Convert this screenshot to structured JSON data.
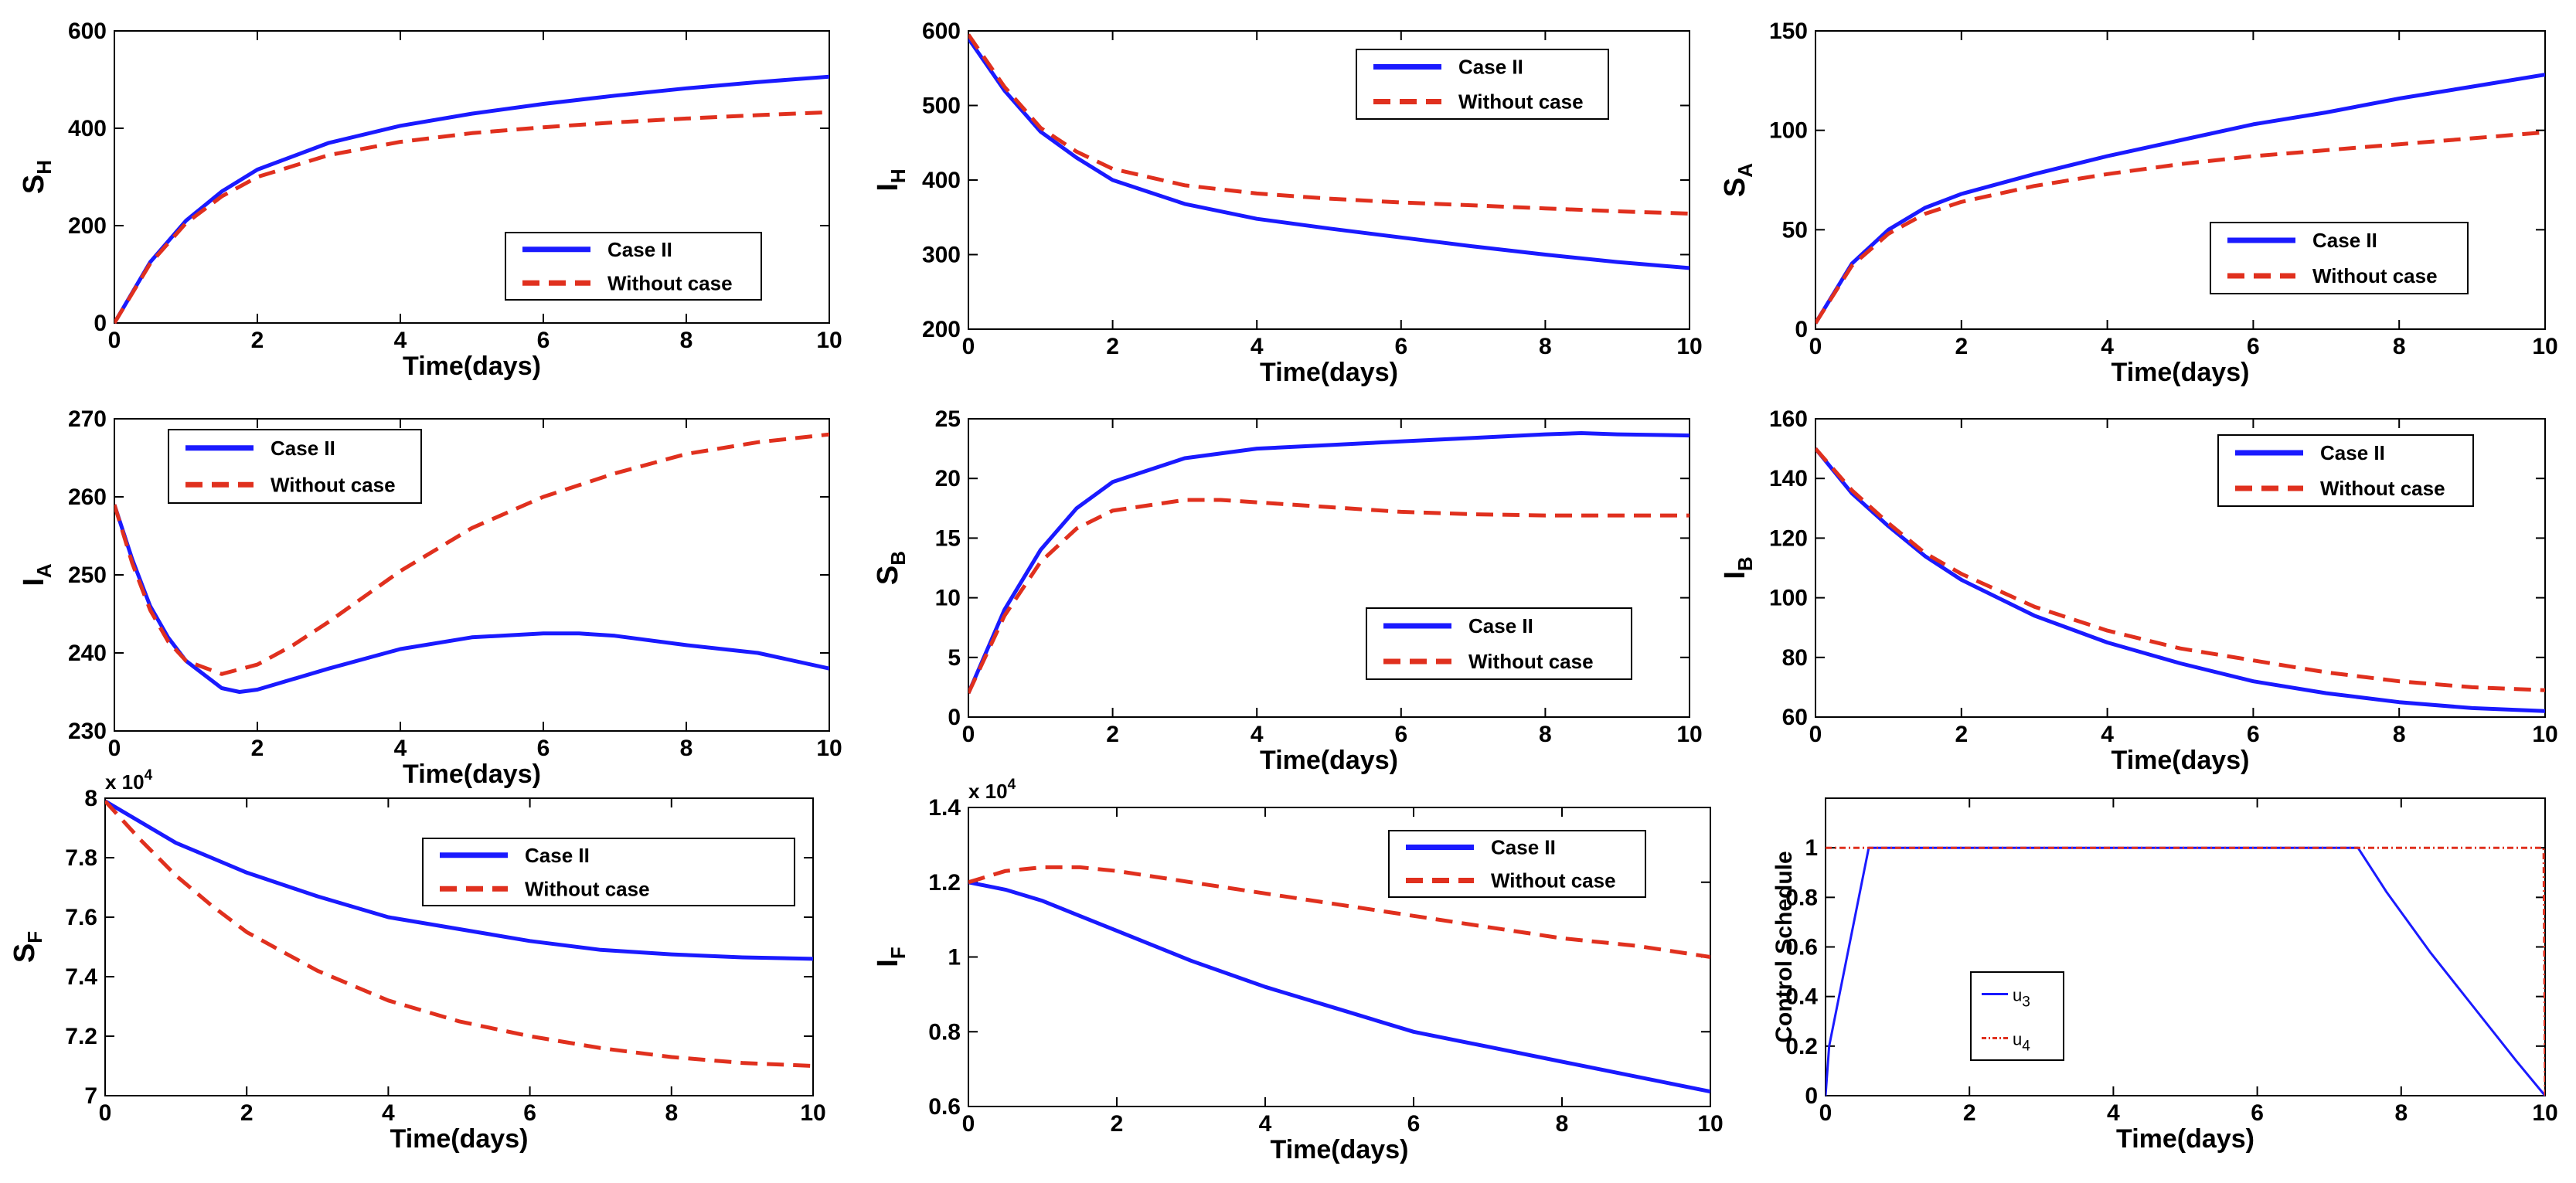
{
  "chart_data": [
    {
      "type": "line",
      "ylabel": "S",
      "ylabel_sub": "H",
      "xlabel": "Time(days)",
      "xlim": [
        0,
        10
      ],
      "ylim": [
        0,
        600
      ],
      "xticks": [
        0,
        2,
        4,
        6,
        8,
        10
      ],
      "yticks": [
        0,
        200,
        400,
        600
      ],
      "legend": "bottom-right",
      "series": [
        {
          "name": "Case II",
          "color": "#1a1aff",
          "style": "solid",
          "x": [
            0,
            0.5,
            1,
            1.5,
            2,
            3,
            4,
            5,
            6,
            7,
            8,
            9,
            10
          ],
          "y": [
            0,
            125,
            210,
            270,
            315,
            370,
            405,
            430,
            450,
            467,
            482,
            495,
            506
          ]
        },
        {
          "name": "Without case",
          "color": "#e0301e",
          "style": "dashed",
          "x": [
            0,
            0.5,
            1,
            1.5,
            2,
            3,
            4,
            5,
            6,
            7,
            8,
            9,
            10
          ],
          "y": [
            0,
            122,
            205,
            260,
            300,
            345,
            372,
            390,
            402,
            412,
            420,
            427,
            433
          ]
        }
      ]
    },
    {
      "type": "line",
      "ylabel": "I",
      "ylabel_sub": "H",
      "xlabel": "Time(days)",
      "xlim": [
        0,
        10
      ],
      "ylim": [
        200,
        600
      ],
      "xticks": [
        0,
        2,
        4,
        6,
        8,
        10
      ],
      "yticks": [
        200,
        300,
        400,
        500,
        600
      ],
      "legend": "top-right",
      "series": [
        {
          "name": "Case II",
          "color": "#1a1aff",
          "style": "solid",
          "x": [
            0,
            0.5,
            1,
            1.5,
            2,
            3,
            4,
            5,
            6,
            7,
            8,
            9,
            10
          ],
          "y": [
            590,
            520,
            465,
            430,
            400,
            368,
            348,
            335,
            323,
            311,
            300,
            290,
            282
          ]
        },
        {
          "name": "Without case",
          "color": "#e0301e",
          "style": "dashed",
          "x": [
            0,
            0.5,
            1,
            1.5,
            2,
            3,
            4,
            5,
            6,
            7,
            8,
            9,
            10
          ],
          "y": [
            595,
            525,
            470,
            438,
            415,
            393,
            382,
            375,
            370,
            366,
            362,
            358,
            355
          ]
        }
      ]
    },
    {
      "type": "line",
      "ylabel": "S",
      "ylabel_sub": "A",
      "xlabel": "Time(days)",
      "xlim": [
        0,
        10
      ],
      "ylim": [
        0,
        150
      ],
      "xticks": [
        0,
        2,
        4,
        6,
        8,
        10
      ],
      "yticks": [
        0,
        50,
        100,
        150
      ],
      "legend": "bottom-right",
      "series": [
        {
          "name": "Case II",
          "color": "#1a1aff",
          "style": "solid",
          "x": [
            0,
            0.5,
            1,
            1.5,
            2,
            3,
            4,
            5,
            6,
            7,
            8,
            9,
            10
          ],
          "y": [
            3,
            33,
            50,
            61,
            68,
            78,
            87,
            95,
            103,
            109,
            116,
            122,
            128
          ]
        },
        {
          "name": "Without case",
          "color": "#e0301e",
          "style": "dashed",
          "x": [
            0,
            0.5,
            1,
            1.5,
            2,
            3,
            4,
            5,
            6,
            7,
            8,
            9,
            10
          ],
          "y": [
            3,
            32,
            48,
            58,
            64,
            72,
            78,
            83,
            87,
            90,
            93,
            96,
            99
          ]
        }
      ]
    },
    {
      "type": "line",
      "ylabel": "I",
      "ylabel_sub": "A",
      "xlabel": "Time(days)",
      "xlim": [
        0,
        10
      ],
      "ylim": [
        230,
        270
      ],
      "xticks": [
        0,
        2,
        4,
        6,
        8,
        10
      ],
      "yticks": [
        230,
        240,
        250,
        260,
        270
      ],
      "legend": "top-left",
      "series": [
        {
          "name": "Case II",
          "color": "#1a1aff",
          "style": "solid",
          "x": [
            0,
            0.25,
            0.5,
            0.75,
            1,
            1.5,
            1.75,
            2,
            3,
            4,
            5,
            6,
            6.5,
            7,
            8,
            9,
            10
          ],
          "y": [
            259,
            252,
            246,
            242,
            239,
            235.5,
            235,
            235.3,
            238,
            240.5,
            242,
            242.5,
            242.5,
            242.2,
            241,
            240,
            238
          ]
        },
        {
          "name": "Without case",
          "color": "#e0301e",
          "style": "dashed",
          "x": [
            0,
            0.25,
            0.5,
            0.75,
            1,
            1.5,
            2,
            2.5,
            3,
            4,
            5,
            6,
            7,
            8,
            9,
            10
          ],
          "y": [
            259,
            251.5,
            245.5,
            241.5,
            239,
            237.3,
            238.5,
            241,
            244,
            250.5,
            256,
            260,
            263,
            265.5,
            267,
            268
          ]
        }
      ]
    },
    {
      "type": "line",
      "ylabel": "S",
      "ylabel_sub": "B",
      "xlabel": "Time(days)",
      "xlim": [
        0,
        10
      ],
      "ylim": [
        0,
        25
      ],
      "xticks": [
        0,
        2,
        4,
        6,
        8,
        10
      ],
      "yticks": [
        0,
        5,
        10,
        15,
        20,
        25
      ],
      "legend": "bottom-right",
      "series": [
        {
          "name": "Case II",
          "color": "#1a1aff",
          "style": "solid",
          "x": [
            0,
            0.5,
            1,
            1.5,
            2,
            3,
            4,
            5,
            6,
            7,
            8,
            8.5,
            9,
            10
          ],
          "y": [
            2,
            9,
            14,
            17.5,
            19.7,
            21.7,
            22.5,
            22.8,
            23.1,
            23.4,
            23.7,
            23.8,
            23.7,
            23.6
          ]
        },
        {
          "name": "Without case",
          "color": "#e0301e",
          "style": "dashed",
          "x": [
            0,
            0.5,
            1,
            1.5,
            2,
            3,
            3.5,
            4,
            5,
            6,
            7,
            8,
            9,
            10
          ],
          "y": [
            2,
            8.5,
            13,
            15.8,
            17.3,
            18.2,
            18.2,
            18,
            17.6,
            17.2,
            17,
            16.9,
            16.9,
            16.9
          ]
        }
      ]
    },
    {
      "type": "line",
      "ylabel": "I",
      "ylabel_sub": "B",
      "xlabel": "Time(days)",
      "xlim": [
        0,
        10
      ],
      "ylim": [
        60,
        160
      ],
      "xticks": [
        0,
        2,
        4,
        6,
        8,
        10
      ],
      "yticks": [
        60,
        80,
        100,
        120,
        140,
        160
      ],
      "legend": "top-right",
      "series": [
        {
          "name": "Case II",
          "color": "#1a1aff",
          "style": "solid",
          "x": [
            0,
            0.5,
            1,
            1.5,
            2,
            3,
            4,
            5,
            6,
            7,
            8,
            9,
            10
          ],
          "y": [
            150,
            135,
            124,
            114,
            106,
            94,
            85,
            78,
            72,
            68,
            65,
            63,
            62
          ]
        },
        {
          "name": "Without case",
          "color": "#e0301e",
          "style": "dashed",
          "x": [
            0,
            0.5,
            1,
            1.5,
            2,
            3,
            4,
            5,
            6,
            7,
            8,
            9,
            10
          ],
          "y": [
            150,
            136,
            125,
            115,
            108,
            97,
            89,
            83,
            79,
            75,
            72,
            70,
            69
          ]
        }
      ]
    },
    {
      "type": "line",
      "ylabel": "S",
      "ylabel_sub": "F",
      "xlabel": "Time(days)",
      "multiplier": "x 10",
      "multiplier_exp": "4",
      "xlim": [
        0,
        10
      ],
      "ylim": [
        7,
        8
      ],
      "xticks": [
        0,
        2,
        4,
        6,
        8,
        10
      ],
      "yticks": [
        7,
        7.2,
        7.4,
        7.6,
        7.8,
        8
      ],
      "ytick_labels": [
        "7",
        "7.2",
        "7.4",
        "7.6",
        "7.8",
        "8"
      ],
      "legend": "top-right",
      "series": [
        {
          "name": "Case II",
          "color": "#1a1aff",
          "style": "solid",
          "x": [
            0,
            0.5,
            1,
            1.5,
            2,
            3,
            4,
            5,
            6,
            7,
            8,
            9,
            10
          ],
          "y": [
            7.99,
            7.92,
            7.85,
            7.8,
            7.75,
            7.67,
            7.6,
            7.56,
            7.52,
            7.49,
            7.475,
            7.465,
            7.46
          ]
        },
        {
          "name": "Without case",
          "color": "#e0301e",
          "style": "dashed",
          "x": [
            0,
            0.5,
            1,
            1.5,
            2,
            3,
            4,
            5,
            6,
            7,
            8,
            9,
            10
          ],
          "y": [
            7.99,
            7.86,
            7.74,
            7.64,
            7.55,
            7.42,
            7.32,
            7.25,
            7.2,
            7.16,
            7.13,
            7.11,
            7.1
          ]
        }
      ]
    },
    {
      "type": "line",
      "ylabel": "I",
      "ylabel_sub": "F",
      "xlabel": "Time(days)",
      "multiplier": "x 10",
      "multiplier_exp": "4",
      "xlim": [
        0,
        10
      ],
      "ylim": [
        0.6,
        1.4
      ],
      "xticks": [
        0,
        2,
        4,
        6,
        8,
        10
      ],
      "yticks": [
        0.6,
        0.8,
        1.0,
        1.2,
        1.4
      ],
      "ytick_labels": [
        "0.6",
        "0.8",
        "1",
        "1.2",
        "1.4"
      ],
      "legend": "top-right",
      "series": [
        {
          "name": "Case II",
          "color": "#1a1aff",
          "style": "solid",
          "x": [
            0,
            0.5,
            1,
            1.5,
            2,
            3,
            4,
            5,
            6,
            7,
            8,
            9,
            10
          ],
          "y": [
            1.2,
            1.18,
            1.15,
            1.11,
            1.07,
            0.99,
            0.92,
            0.86,
            0.8,
            0.76,
            0.72,
            0.68,
            0.64
          ]
        },
        {
          "name": "Without case",
          "color": "#e0301e",
          "style": "dashed",
          "x": [
            0,
            0.5,
            1,
            1.5,
            2,
            3,
            4,
            5,
            6,
            7,
            8,
            9,
            10
          ],
          "y": [
            1.2,
            1.23,
            1.24,
            1.24,
            1.23,
            1.2,
            1.17,
            1.14,
            1.11,
            1.08,
            1.05,
            1.03,
            1.0
          ]
        }
      ]
    },
    {
      "type": "line",
      "ylabel": "Control Schedule",
      "ylabel_sub": "",
      "xlabel": "Time(days)",
      "xlim": [
        0,
        10
      ],
      "ylim": [
        0,
        1.2
      ],
      "xticks": [
        0,
        2,
        4,
        6,
        8,
        10
      ],
      "yticks": [
        0,
        0.2,
        0.4,
        0.6,
        0.8,
        1.0
      ],
      "ytick_labels": [
        "0",
        "0.2",
        "0.4",
        "0.6",
        "0.8",
        "1"
      ],
      "legend": "bottom-left",
      "series": [
        {
          "name": "u",
          "name_sub": "3",
          "color": "#1a1aff",
          "style": "solid",
          "thin": true,
          "x": [
            0,
            0.05,
            0.6,
            7.4,
            7.8,
            8.4,
            9.0,
            9.6,
            10
          ],
          "y": [
            0,
            0.2,
            1.0,
            1.0,
            0.82,
            0.58,
            0.36,
            0.14,
            0
          ]
        },
        {
          "name": "u",
          "name_sub": "4",
          "color": "#e0301e",
          "style": "dashdot",
          "thin": true,
          "x": [
            0,
            9.98,
            9.99,
            10
          ],
          "y": [
            1.0,
            1.0,
            0.5,
            0
          ]
        }
      ]
    }
  ]
}
